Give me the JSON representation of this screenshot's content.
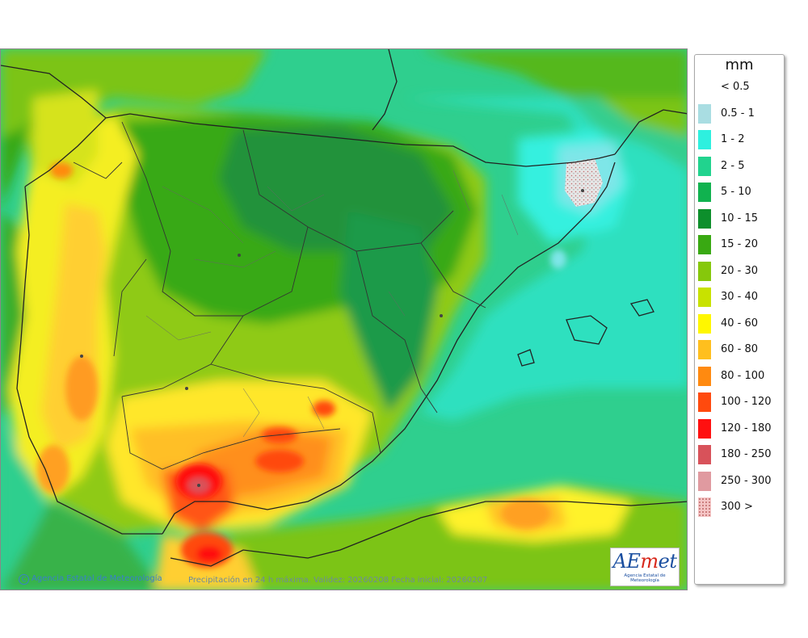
{
  "map": {
    "credit": "Agencia Estatal de Meteorología",
    "caption": "Precipitación en 24 h máxima. Validez: 20260208 Fecha inicial: 20260207",
    "logo": {
      "ae": "AE",
      "m": "m",
      "et": "et",
      "subtitle": "Agencia Estatal de Meteorología"
    }
  },
  "legend": {
    "unit": "mm",
    "items": [
      {
        "label": "< 0.5",
        "color": "#ffffff"
      },
      {
        "label": "0.5 - 1",
        "color": "#a9dde2"
      },
      {
        "label": "1 - 2",
        "color": "#2ef0df"
      },
      {
        "label": "2 - 5",
        "color": "#21d38e"
      },
      {
        "label": "5 - 10",
        "color": "#10b24f"
      },
      {
        "label": "10 - 15",
        "color": "#0d8f2c"
      },
      {
        "label": "15 - 20",
        "color": "#39a912"
      },
      {
        "label": "20 - 30",
        "color": "#86c80b"
      },
      {
        "label": "30 - 40",
        "color": "#c8e200"
      },
      {
        "label": "40 - 60",
        "color": "#fff700"
      },
      {
        "label": "60 - 80",
        "color": "#ffbf1e"
      },
      {
        "label": "80 - 100",
        "color": "#ff8a10"
      },
      {
        "label": "100 - 120",
        "color": "#ff4a0e"
      },
      {
        "label": "120 - 180",
        "color": "#ff1010"
      },
      {
        "label": "180 - 250",
        "color": "#d8525a"
      },
      {
        "label": "250 - 300",
        "color": "#e09aa0"
      },
      {
        "label": "300 >",
        "color": "#f4c4c4"
      }
    ]
  }
}
